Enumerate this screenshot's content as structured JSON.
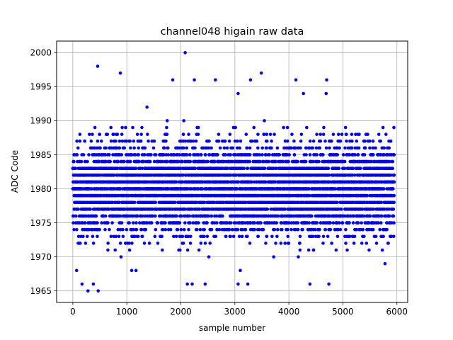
{
  "chart_data": {
    "type": "scatter",
    "title": "channel048 higain raw data",
    "xlabel": "sample number",
    "ylabel": "ADC Code",
    "xlim": [
      -300,
      6200
    ],
    "ylim": [
      1963.3,
      2001.7
    ],
    "xticks": [
      0,
      1000,
      2000,
      3000,
      4000,
      5000,
      6000
    ],
    "yticks": [
      1965,
      1970,
      1975,
      1980,
      1985,
      1990,
      1995,
      2000
    ],
    "grid": true,
    "marker_color": "#0000ff",
    "n_samples": 5952,
    "value_distribution": {
      "center": 1980,
      "dense_range": [
        1972,
        1988
      ],
      "sparse_range": [
        1965,
        1993
      ]
    },
    "outliers": [
      {
        "x": 2080,
        "y": 2000
      },
      {
        "x": 460,
        "y": 1998
      },
      {
        "x": 880,
        "y": 1997
      },
      {
        "x": 3490,
        "y": 1997
      },
      {
        "x": 1850,
        "y": 1996
      },
      {
        "x": 2250,
        "y": 1996
      },
      {
        "x": 2640,
        "y": 1996
      },
      {
        "x": 3290,
        "y": 1996
      },
      {
        "x": 4130,
        "y": 1996
      },
      {
        "x": 4700,
        "y": 1996
      },
      {
        "x": 4270,
        "y": 1994
      },
      {
        "x": 3060,
        "y": 1994
      },
      {
        "x": 4690,
        "y": 1994
      },
      {
        "x": 280,
        "y": 1965
      },
      {
        "x": 470,
        "y": 1965
      },
      {
        "x": 380,
        "y": 1966
      },
      {
        "x": 170,
        "y": 1966
      },
      {
        "x": 2120,
        "y": 1966
      },
      {
        "x": 2210,
        "y": 1966
      },
      {
        "x": 2450,
        "y": 1966
      },
      {
        "x": 3060,
        "y": 1966
      },
      {
        "x": 3240,
        "y": 1966
      },
      {
        "x": 4390,
        "y": 1966
      },
      {
        "x": 4740,
        "y": 1966
      },
      {
        "x": 70,
        "y": 1968
      },
      {
        "x": 1090,
        "y": 1968
      },
      {
        "x": 1170,
        "y": 1968
      }
    ]
  }
}
